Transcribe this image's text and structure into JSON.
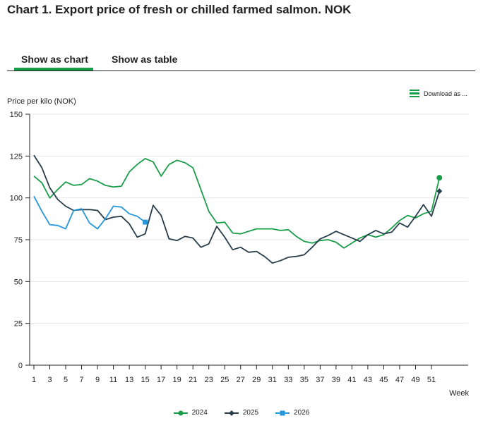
{
  "title": "Chart 1. Export price of fresh or chilled farmed salmon. NOK",
  "tabs": {
    "chart": "Show as chart",
    "table": "Show as table"
  },
  "download_label": "Download as ...",
  "colors": {
    "s2024": "#1a9d49",
    "s2025": "#273d4b",
    "s2026": "#2596d9",
    "accent": "#1a9d49"
  },
  "chart_data": {
    "type": "line",
    "ylabel": "Price per kilo (NOK)",
    "xlabel": "Week",
    "ylim": [
      0,
      150
    ],
    "yticks": [
      0,
      25,
      50,
      75,
      100,
      125,
      150
    ],
    "xlim": [
      1,
      52
    ],
    "xticks": [
      1,
      3,
      5,
      7,
      9,
      11,
      13,
      15,
      17,
      19,
      21,
      23,
      25,
      27,
      29,
      31,
      33,
      35,
      37,
      39,
      41,
      43,
      45,
      47,
      49,
      51
    ],
    "series": [
      {
        "name": "2024",
        "color": "#1a9d49",
        "marker": "circle",
        "values": [
          113,
          109,
          100,
          105,
          109.5,
          107.5,
          108,
          111.5,
          110,
          107.5,
          106.5,
          107,
          115.5,
          120,
          123.5,
          121.5,
          113,
          120,
          122.5,
          121,
          118,
          105,
          92,
          85,
          85.5,
          79,
          78.5,
          80,
          81.5,
          81.5,
          81.5,
          80.5,
          81,
          77,
          74,
          73,
          74.5,
          75,
          73.5,
          70,
          73,
          76,
          78,
          76.5,
          78,
          82,
          86.5,
          89.5,
          88,
          90.5,
          92,
          112
        ]
      },
      {
        "name": "2025",
        "color": "#273d4b",
        "marker": "diamond",
        "values": [
          125.5,
          118,
          106,
          99,
          95,
          92.5,
          93,
          93,
          92.5,
          87,
          88.5,
          89,
          84.5,
          76.5,
          78.5,
          95.5,
          89.5,
          75.5,
          74.5,
          77,
          76,
          70.5,
          72.5,
          83,
          76.5,
          69,
          70.5,
          67.5,
          68,
          65,
          61,
          62.5,
          64.5,
          65,
          66,
          70.5,
          75.5,
          77.5,
          80,
          78,
          76,
          74,
          78,
          80.5,
          78.5,
          79.5,
          85,
          82.5,
          89,
          96,
          89,
          104
        ]
      },
      {
        "name": "2026",
        "color": "#2596d9",
        "marker": "square",
        "values": [
          101,
          92,
          84,
          83.5,
          81.5,
          92.5,
          93.5,
          85,
          81.5,
          87.5,
          95,
          94.5,
          90.5,
          89,
          85.5
        ]
      }
    ]
  }
}
